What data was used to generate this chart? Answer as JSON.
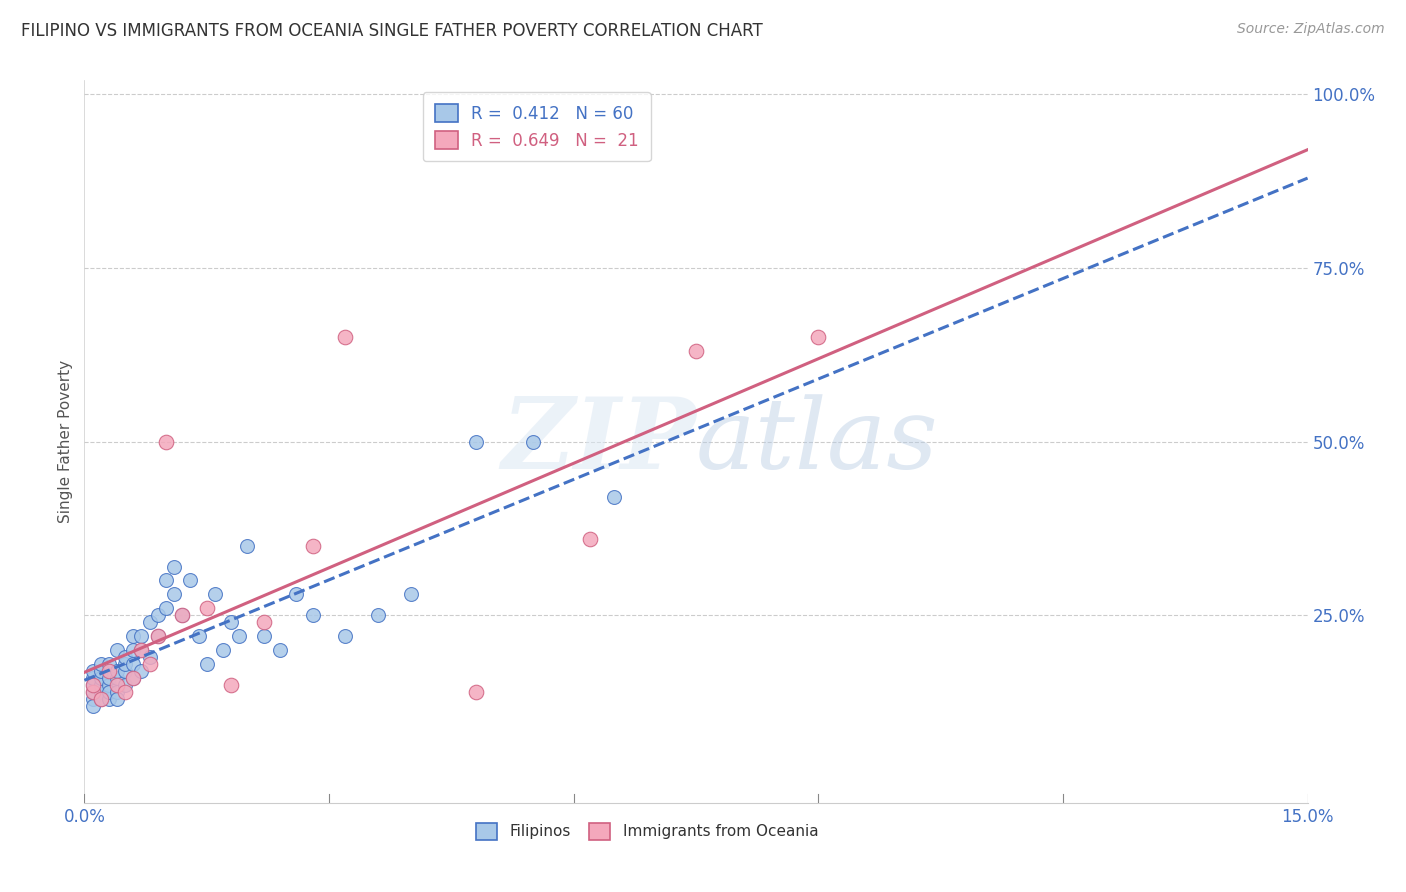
{
  "title": "FILIPINO VS IMMIGRANTS FROM OCEANIA SINGLE FATHER POVERTY CORRELATION CHART",
  "source": "Source: ZipAtlas.com",
  "ylabel": "Single Father Poverty",
  "xlim": [
    0.0,
    0.15
  ],
  "ylim": [
    -0.02,
    1.02
  ],
  "ytick_positions": [
    0.25,
    0.5,
    0.75,
    1.0
  ],
  "ytick_labels": [
    "25.0%",
    "50.0%",
    "75.0%",
    "100.0%"
  ],
  "xtick_positions": [
    0.0,
    0.15
  ],
  "xtick_labels": [
    "0.0%",
    "15.0%"
  ],
  "color_filipino": "#a8c8e8",
  "color_oceania": "#f4a8bc",
  "color_filipino_line": "#4472c4",
  "color_oceania_line": "#d06080",
  "background": "#ffffff",
  "filipinos_x": [
    0.001,
    0.001,
    0.001,
    0.001,
    0.001,
    0.001,
    0.002,
    0.002,
    0.002,
    0.002,
    0.002,
    0.002,
    0.003,
    0.003,
    0.003,
    0.003,
    0.003,
    0.004,
    0.004,
    0.004,
    0.004,
    0.004,
    0.005,
    0.005,
    0.005,
    0.005,
    0.006,
    0.006,
    0.006,
    0.006,
    0.007,
    0.007,
    0.007,
    0.008,
    0.008,
    0.009,
    0.009,
    0.01,
    0.01,
    0.011,
    0.011,
    0.012,
    0.013,
    0.014,
    0.015,
    0.016,
    0.017,
    0.018,
    0.019,
    0.02,
    0.022,
    0.024,
    0.026,
    0.028,
    0.032,
    0.036,
    0.04,
    0.048,
    0.055,
    0.065
  ],
  "filipinos_y": [
    0.13,
    0.14,
    0.15,
    0.16,
    0.17,
    0.12,
    0.14,
    0.15,
    0.16,
    0.13,
    0.17,
    0.18,
    0.13,
    0.15,
    0.16,
    0.14,
    0.18,
    0.14,
    0.16,
    0.17,
    0.13,
    0.2,
    0.15,
    0.17,
    0.18,
    0.19,
    0.16,
    0.18,
    0.2,
    0.22,
    0.17,
    0.2,
    0.22,
    0.19,
    0.24,
    0.22,
    0.25,
    0.26,
    0.3,
    0.28,
    0.32,
    0.25,
    0.3,
    0.22,
    0.18,
    0.28,
    0.2,
    0.24,
    0.22,
    0.35,
    0.22,
    0.2,
    0.28,
    0.25,
    0.22,
    0.25,
    0.28,
    0.5,
    0.5,
    0.42
  ],
  "oceania_x": [
    0.001,
    0.001,
    0.002,
    0.003,
    0.004,
    0.005,
    0.006,
    0.007,
    0.008,
    0.009,
    0.01,
    0.012,
    0.015,
    0.018,
    0.022,
    0.028,
    0.032,
    0.048,
    0.062,
    0.075,
    0.09
  ],
  "oceania_y": [
    0.14,
    0.15,
    0.13,
    0.17,
    0.15,
    0.14,
    0.16,
    0.2,
    0.18,
    0.22,
    0.5,
    0.25,
    0.26,
    0.15,
    0.24,
    0.35,
    0.65,
    0.14,
    0.36,
    0.63,
    0.65
  ]
}
